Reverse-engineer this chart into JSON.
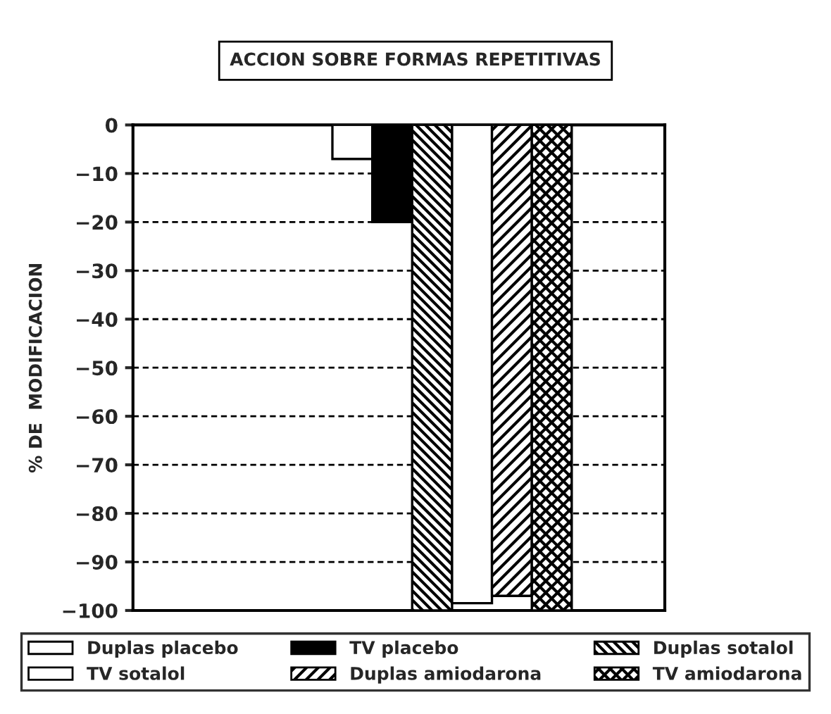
{
  "chart_data": {
    "type": "bar",
    "title": "ACCION SOBRE FORMAS REPETITIVAS",
    "ylabel": "% DE  MODIFICACION",
    "categories": [
      null
    ],
    "series": [
      {
        "name": "Duplas placebo",
        "color": "#ffffff",
        "values": [
          -7
        ]
      },
      {
        "name": "TV placebo",
        "color": "#000000",
        "values": [
          -20
        ]
      },
      {
        "name": "Duplas sotalol",
        "color": "#000000",
        "values": [
          -100
        ]
      },
      {
        "name": "TV sotalol",
        "color": "#ffffff",
        "values": [
          -98.5
        ]
      },
      {
        "name": "Duplas amiodarona",
        "color": "#000000",
        "values": [
          -97
        ]
      },
      {
        "name": "TV amiodarona",
        "color": "#000000",
        "values": [
          -100
        ]
      }
    ],
    "ylim": [
      -100,
      0
    ],
    "yticks": [
      {
        "value": 0,
        "label": "0"
      },
      {
        "value": -10,
        "label": "−10"
      },
      {
        "value": -20,
        "label": "−20"
      },
      {
        "value": -30,
        "label": "−30"
      },
      {
        "value": -40,
        "label": "−40"
      },
      {
        "value": -50,
        "label": "−50"
      },
      {
        "value": -60,
        "label": "−60"
      },
      {
        "value": -70,
        "label": "−70"
      },
      {
        "value": -80,
        "label": "−80"
      },
      {
        "value": -90,
        "label": "−90"
      },
      {
        "value": -100,
        "label": "−100"
      }
    ],
    "grid": "y",
    "legend": "bottom"
  }
}
